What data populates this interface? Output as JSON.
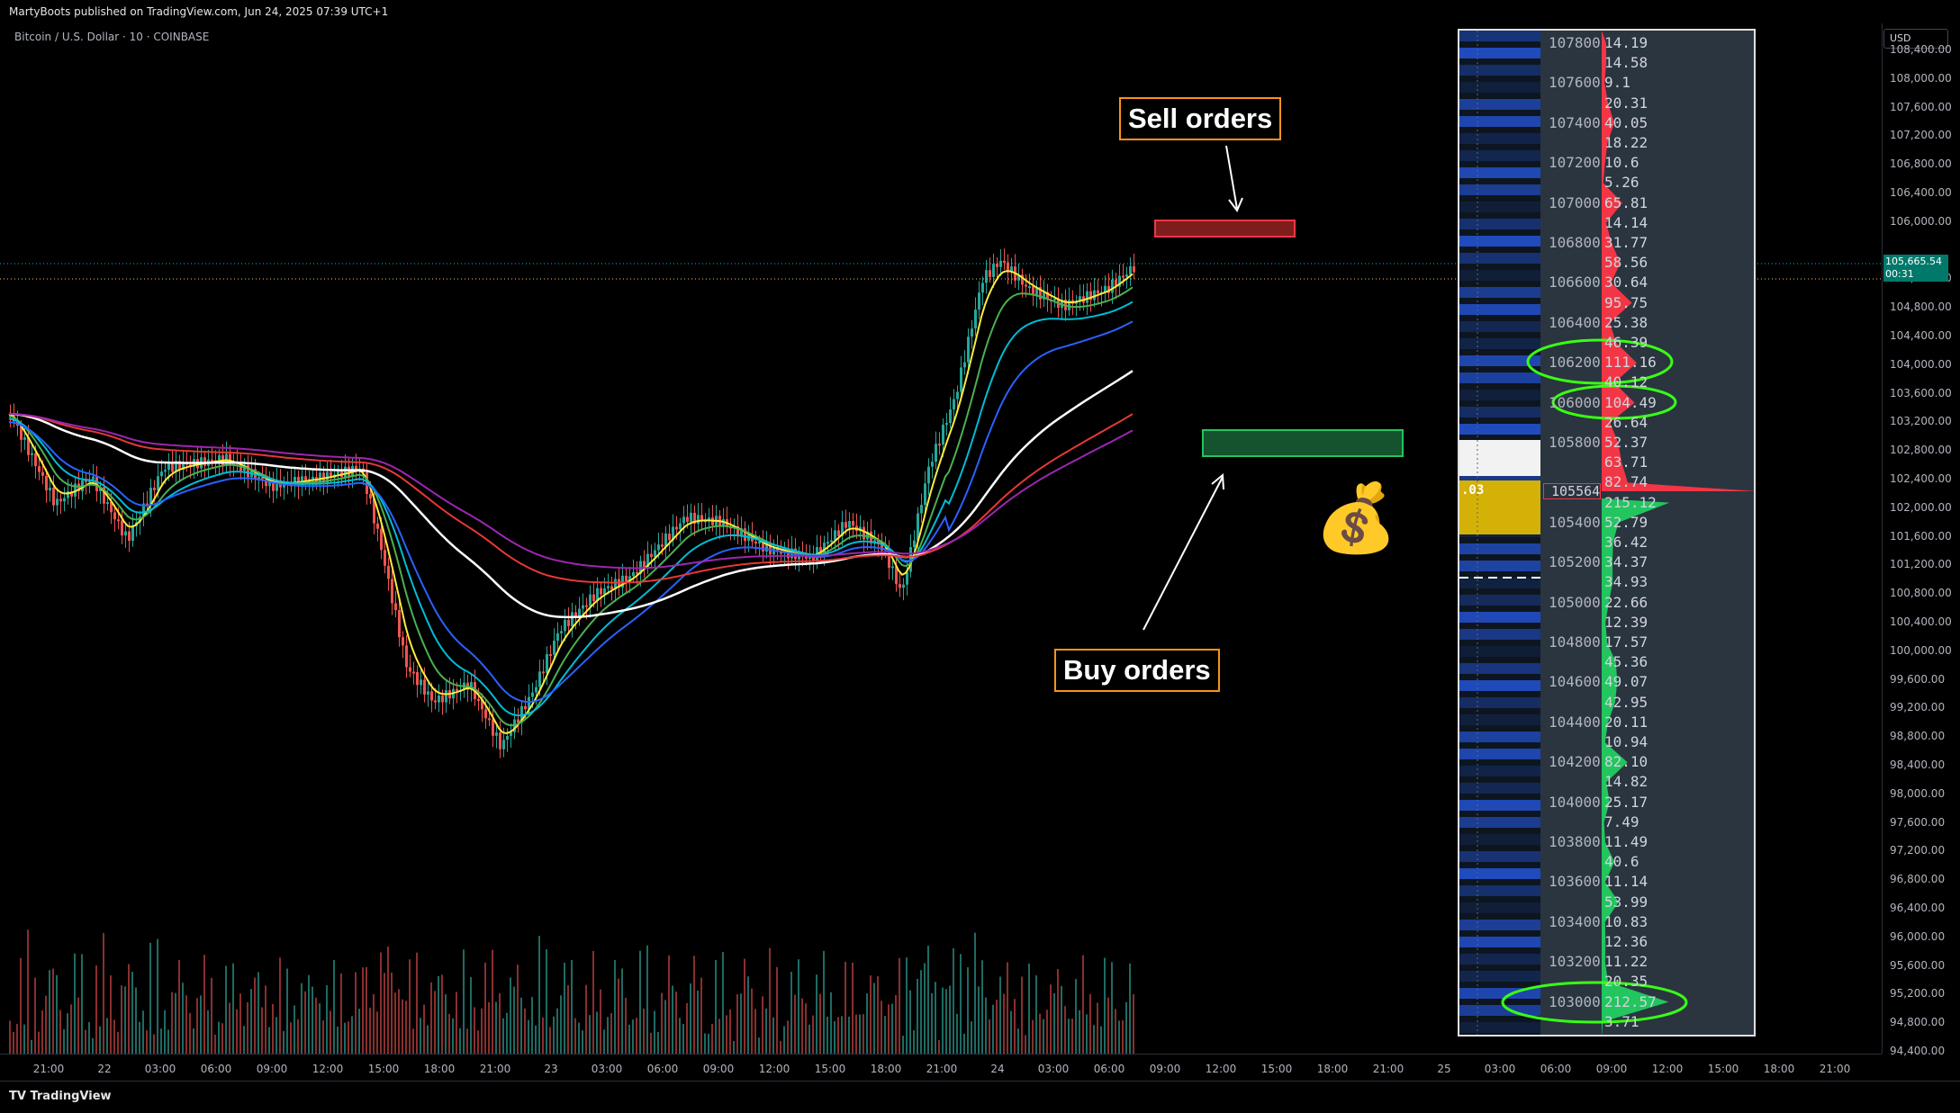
{
  "header": {
    "published": "MartyBoots published on TradingView.com, Jun 24, 2025 07:39 UTC+1"
  },
  "chart": {
    "title": "Bitcoin / U.S. Dollar · 10 · COINBASE"
  },
  "price_axis": {
    "currency": "USD",
    "current_price": "105,665.54",
    "countdown": "00:31",
    "labels": [
      "108,400.00",
      "108,000.00",
      "107,600.00",
      "107,200.00",
      "106,800.00",
      "106,400.00",
      "106,000.00",
      "105,200.00",
      "104,800.00",
      "104,400.00",
      "104,000.00",
      "103,600.00",
      "103,200.00",
      "102,800.00",
      "102,400.00",
      "102,000.00",
      "101,600.00",
      "101,200.00",
      "100,800.00",
      "100,400.00",
      "100,000.00",
      "99,600.00",
      "99,200.00",
      "98,800.00",
      "98,400.00",
      "98,000.00",
      "97,600.00",
      "97,200.00",
      "96,800.00",
      "96,400.00",
      "96,000.00",
      "95,600.00",
      "95,200.00",
      "94,800.00",
      "94,400.00"
    ]
  },
  "time_axis": {
    "labels": [
      "21:00",
      "22",
      "03:00",
      "06:00",
      "09:00",
      "12:00",
      "15:00",
      "18:00",
      "21:00",
      "23",
      "03:00",
      "06:00",
      "09:00",
      "12:00",
      "15:00",
      "18:00",
      "21:00",
      "24",
      "03:00",
      "06:00",
      "09:00",
      "12:00",
      "15:00",
      "18:00",
      "21:00",
      "25",
      "03:00",
      "06:00",
      "09:00",
      "12:00",
      "15:00",
      "18:00",
      "21:00"
    ]
  },
  "annotations": {
    "sell": "Sell orders",
    "buy": "Buy orders",
    "money_icon": "money-bag-icon"
  },
  "colors": {
    "sell": "#f23645",
    "buy": "#22c55e",
    "annotation_border": "#f7931a",
    "ema_yellow": "#ffeb3b",
    "ema_green": "#4caf50",
    "ema_cyan": "#00bcd4",
    "ema_blue": "#2962ff",
    "ema_white": "#ffffff",
    "ema_red": "#e53935",
    "ema_purple": "#9c27b0"
  },
  "order_book": {
    "rows": [
      {
        "price": "107800",
        "vol": "14.19"
      },
      {
        "price": "",
        "vol": "14.58"
      },
      {
        "price": "107600",
        "vol": "9.1"
      },
      {
        "price": "",
        "vol": "20.31"
      },
      {
        "price": "107400",
        "vol": "40.05"
      },
      {
        "price": "",
        "vol": "18.22"
      },
      {
        "price": "107200",
        "vol": "10.6"
      },
      {
        "price": "",
        "vol": "5.26"
      },
      {
        "price": "107000",
        "vol": "65.81"
      },
      {
        "price": "",
        "vol": "14.14"
      },
      {
        "price": "106800",
        "vol": "31.77"
      },
      {
        "price": "",
        "vol": "58.56"
      },
      {
        "price": "106600",
        "vol": "30.64"
      },
      {
        "price": "",
        "vol": "95.75"
      },
      {
        "price": "106400",
        "vol": "25.38"
      },
      {
        "price": "",
        "vol": "46.39"
      },
      {
        "price": "106200",
        "vol": "111.16"
      },
      {
        "price": "",
        "vol": "40.12"
      },
      {
        "price": "106000",
        "vol": "104.49"
      },
      {
        "price": "",
        "vol": "26.64"
      },
      {
        "price": "105800",
        "vol": "52.37"
      },
      {
        "price": "",
        "vol": "63.71"
      },
      {
        "price": "",
        "vol": "82.74"
      },
      {
        "price": "",
        "vol": "215.12"
      },
      {
        "price": "105400",
        "vol": "52.79"
      },
      {
        "price": "",
        "vol": "36.42"
      },
      {
        "price": "105200",
        "vol": "34.37"
      },
      {
        "price": "",
        "vol": "34.93"
      },
      {
        "price": "105000",
        "vol": "22.66"
      },
      {
        "price": "",
        "vol": "12.39"
      },
      {
        "price": "104800",
        "vol": "17.57"
      },
      {
        "price": "",
        "vol": "45.36"
      },
      {
        "price": "104600",
        "vol": "49.07"
      },
      {
        "price": "",
        "vol": "42.95"
      },
      {
        "price": "104400",
        "vol": "20.11"
      },
      {
        "price": "",
        "vol": "10.94"
      },
      {
        "price": "104200",
        "vol": "82.10"
      },
      {
        "price": "",
        "vol": "14.82"
      },
      {
        "price": "104000",
        "vol": "25.17"
      },
      {
        "price": "",
        "vol": "7.49"
      },
      {
        "price": "103800",
        "vol": "11.49"
      },
      {
        "price": "",
        "vol": "40.6"
      },
      {
        "price": "103600",
        "vol": "11.14"
      },
      {
        "price": "",
        "vol": "53.99"
      },
      {
        "price": "103400",
        "vol": "10.83"
      },
      {
        "price": "",
        "vol": "12.36"
      },
      {
        "price": "103200",
        "vol": "11.22"
      },
      {
        "price": "",
        "vol": "20.35"
      },
      {
        "price": "103000",
        "vol": "212.57"
      },
      {
        "price": "",
        "vol": "3.71"
      }
    ],
    "mid_price": "105564",
    "mid_left": ".03"
  }
}
